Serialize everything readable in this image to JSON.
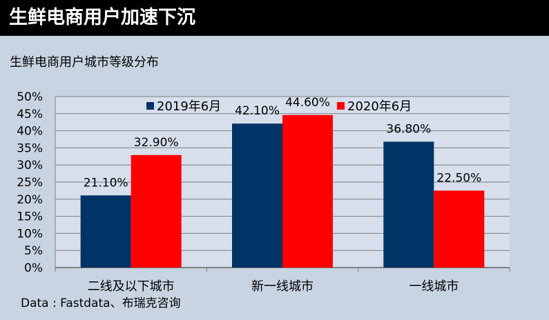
{
  "header": {
    "title": "生鲜电商用户加速下沉"
  },
  "subtitle": "生鲜电商用户城市等级分布",
  "source": "Data : Fastdata、布瑞克咨询",
  "colors": {
    "series_2019": "#003366",
    "series_2020": "#ff0000",
    "background": "#c9d4e2",
    "plot_background": "#d6dfeb"
  },
  "chart_data": {
    "type": "bar",
    "categories": [
      "二线及以下城市",
      "新一线城市",
      "一线城市"
    ],
    "series": [
      {
        "name": "2019年6月",
        "values": [
          21.1,
          42.1,
          36.8
        ],
        "labels": [
          "21.10%",
          "42.10%",
          "36.80%"
        ]
      },
      {
        "name": "2020年6月",
        "values": [
          32.9,
          44.6,
          22.5
        ],
        "labels": [
          "32.90%",
          "44.60%",
          "22.50%"
        ]
      }
    ],
    "yticks": [
      "0%",
      "5%",
      "10%",
      "15%",
      "20%",
      "25%",
      "30%",
      "35%",
      "40%",
      "45%",
      "50%"
    ],
    "ylim": [
      0,
      50
    ],
    "grid": true,
    "legend_position": "top"
  }
}
